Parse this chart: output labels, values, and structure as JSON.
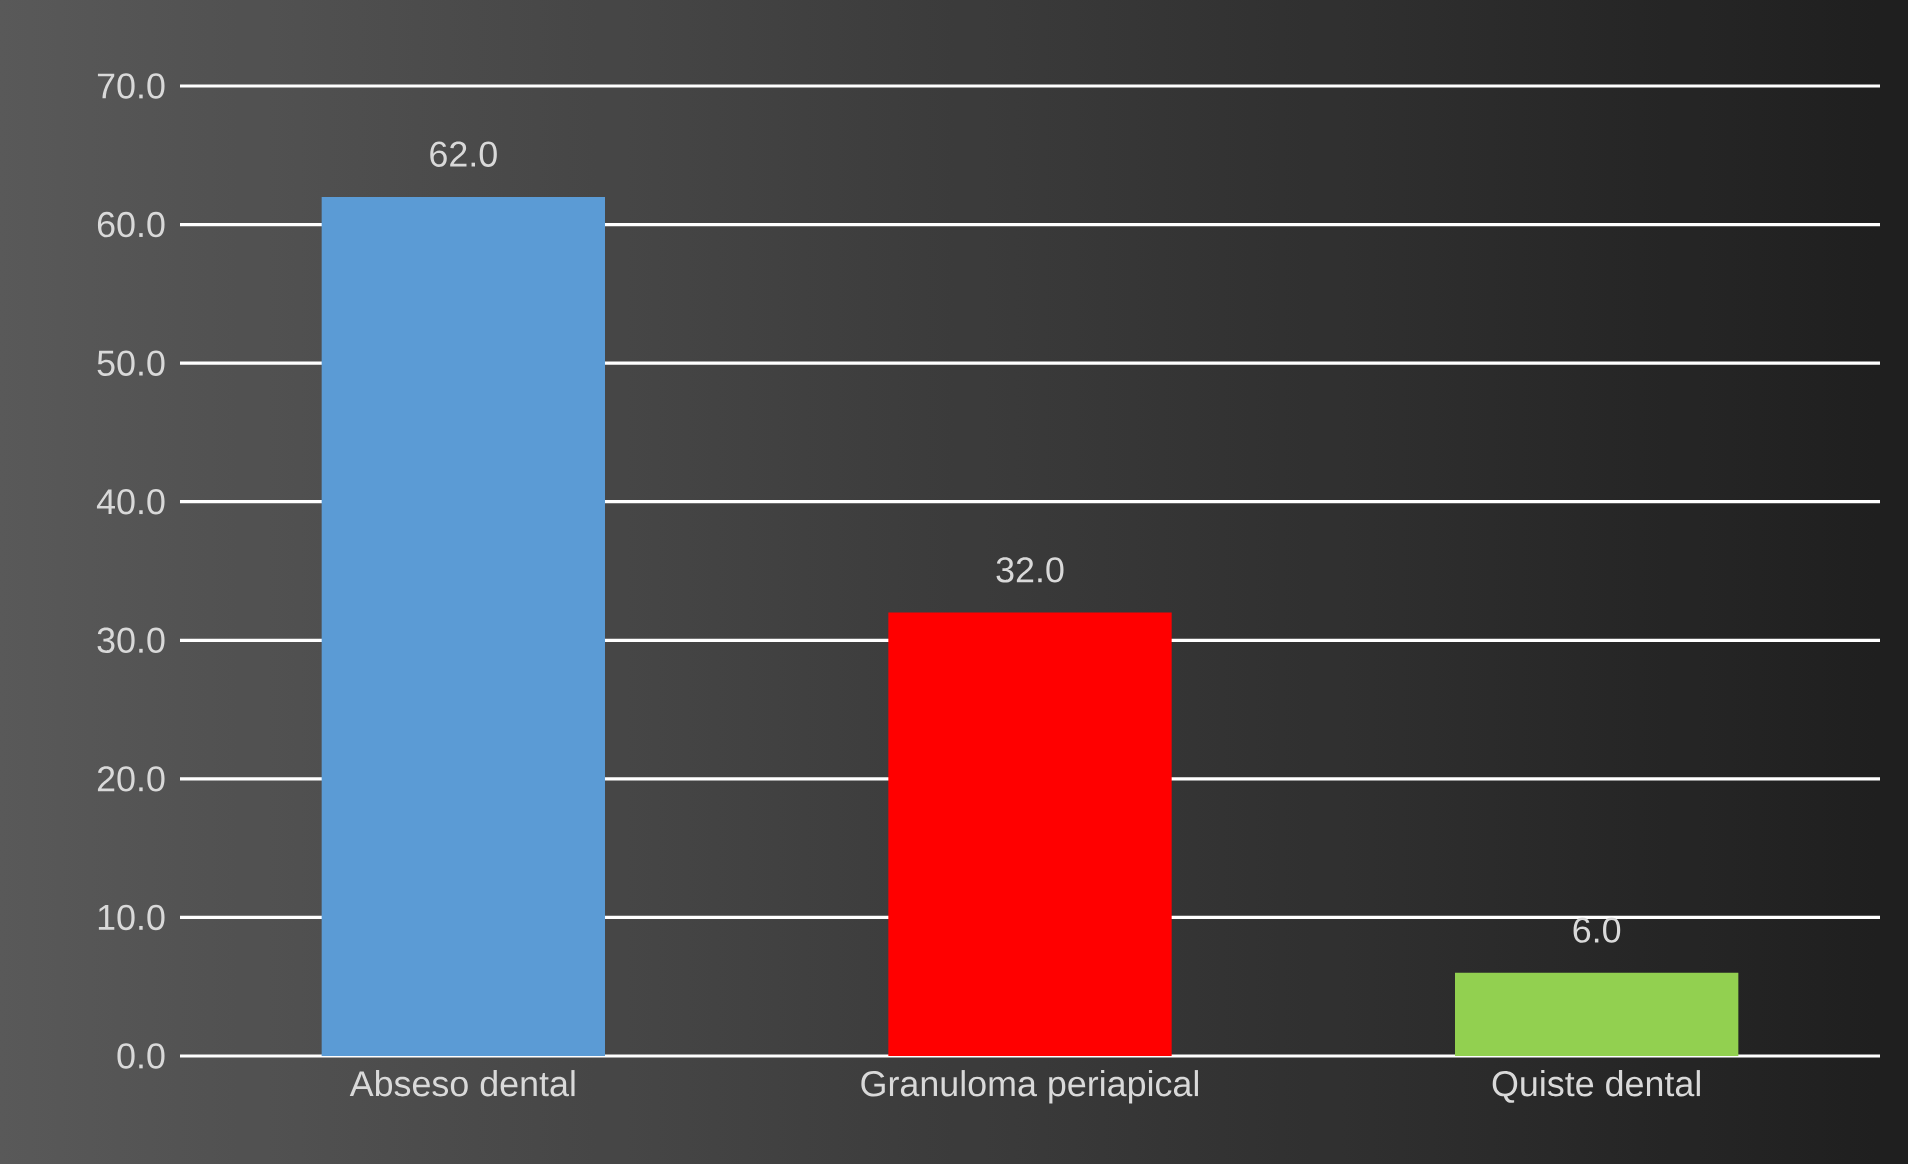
{
  "chart_data": {
    "type": "bar",
    "categories": [
      "Abseso dental",
      "Granuloma periapical",
      "Quiste dental"
    ],
    "values": [
      62.0,
      32.0,
      6.0
    ],
    "colors": [
      "#5b9bd5",
      "#ff0000",
      "#92d050"
    ],
    "value_labels": [
      "62.0",
      "32.0",
      "6.0"
    ],
    "ylim": [
      0,
      70
    ],
    "yticks": [
      {
        "value": 0,
        "label": "0.0"
      },
      {
        "value": 10,
        "label": "10.0"
      },
      {
        "value": 20,
        "label": "20.0"
      },
      {
        "value": 30,
        "label": "30.0"
      },
      {
        "value": 40,
        "label": "40.0"
      },
      {
        "value": 50,
        "label": "50.0"
      },
      {
        "value": 60,
        "label": "60.0"
      },
      {
        "value": 70,
        "label": "70.0"
      }
    ],
    "grid": "y"
  }
}
